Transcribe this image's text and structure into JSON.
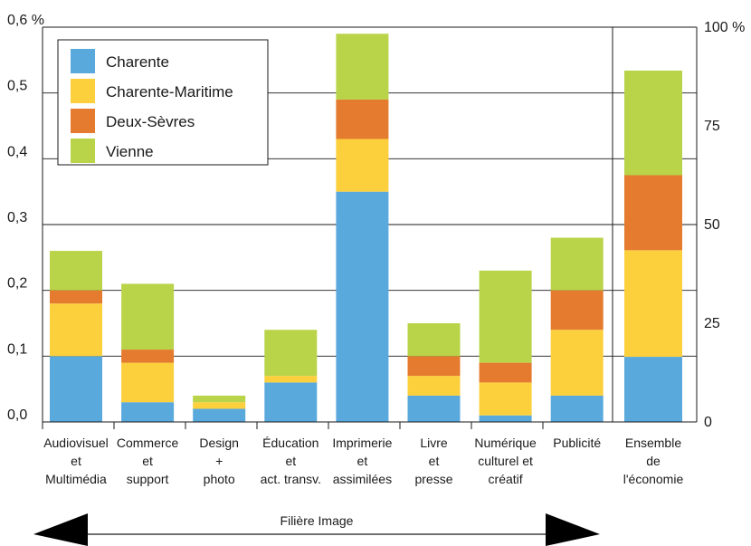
{
  "chart_data": {
    "type": "bar",
    "stacked": true,
    "categories": [
      [
        "Audiovisuel",
        "et",
        "Multimédia"
      ],
      [
        "Commerce",
        "et",
        "support"
      ],
      [
        "Design",
        "+",
        "photo"
      ],
      [
        "Éducation",
        "et",
        "act. transv."
      ],
      [
        "Imprimerie",
        "et",
        "assimilées"
      ],
      [
        "Livre",
        "et",
        "presse"
      ],
      [
        "Numérique",
        "culturel et",
        "créatif"
      ],
      [
        "Publicité"
      ]
    ],
    "series": [
      {
        "name": "Charente",
        "color": "#5aa9dd",
        "values": [
          0.1,
          0.03,
          0.02,
          0.06,
          0.35,
          0.04,
          0.01,
          0.04
        ]
      },
      {
        "name": "Charente-Maritime",
        "color": "#fcd03c",
        "values": [
          0.08,
          0.06,
          0.01,
          0.01,
          0.08,
          0.03,
          0.05,
          0.1
        ]
      },
      {
        "name": "Deux-Sèvres",
        "color": "#e47b2f",
        "values": [
          0.02,
          0.02,
          0.0,
          0.0,
          0.06,
          0.03,
          0.03,
          0.06
        ]
      },
      {
        "name": "Vienne",
        "color": "#b9d449",
        "values": [
          0.06,
          0.1,
          0.01,
          0.07,
          0.1,
          0.05,
          0.14,
          0.08
        ]
      }
    ],
    "y_left": {
      "ticks": [
        "0,0",
        "0,1",
        "0,2",
        "0,3",
        "0,4",
        "0,5",
        "0,6 %"
      ],
      "ylim": [
        0,
        0.6
      ]
    },
    "secondary": {
      "category": [
        "Ensemble",
        "de",
        "l'économie"
      ],
      "values_percent": [
        16.5,
        27.0,
        19.0,
        26.5
      ],
      "y_right": {
        "ticks": [
          "0",
          "25",
          "50",
          "75",
          "100 %"
        ],
        "ylim": [
          0,
          100
        ]
      }
    },
    "legend": {
      "placement": "top-left"
    },
    "grid": true,
    "arrow_label": "Filière Image"
  }
}
